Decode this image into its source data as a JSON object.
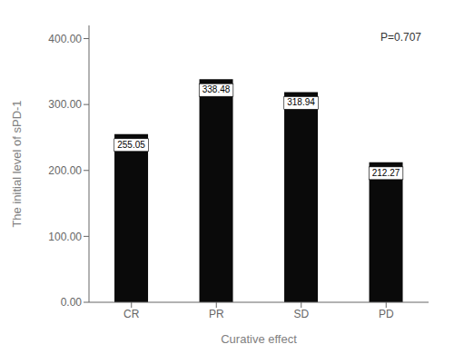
{
  "chart_data": {
    "type": "bar",
    "categories": [
      "CR",
      "PR",
      "SD",
      "PD"
    ],
    "values": [
      255.05,
      338.48,
      318.94,
      212.27
    ],
    "color": "#0a0a0a",
    "xlabel": "Curative effect",
    "ylabel": "The initial level of sPD-1",
    "annotation": "P=0.707",
    "ylim": [
      0,
      420
    ],
    "yticks": [
      {
        "value": 0,
        "label": "0.00"
      },
      {
        "value": 100,
        "label": "100.00"
      },
      {
        "value": 200,
        "label": "200.00"
      },
      {
        "value": 300,
        "label": "300.00"
      },
      {
        "value": 400,
        "label": "400.00"
      }
    ],
    "data_labels": true,
    "grid": false
  }
}
